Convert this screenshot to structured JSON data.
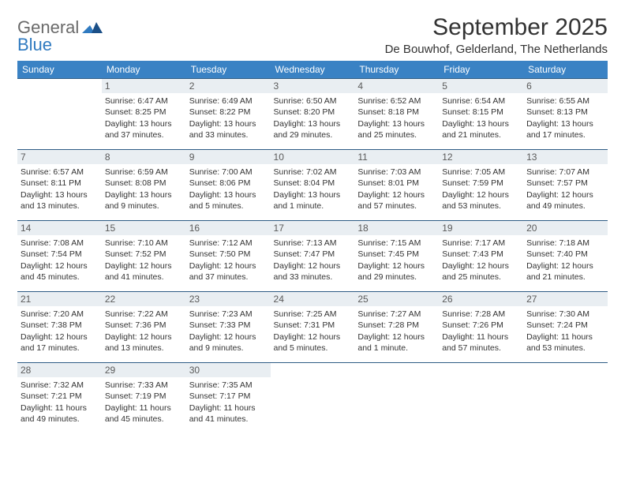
{
  "logo": {
    "word1": "General",
    "word2": "Blue"
  },
  "title": "September 2025",
  "location": "De Bouwhof, Gelderland, The Netherlands",
  "colors": {
    "header_bg": "#3a82c4",
    "header_text": "#ffffff",
    "row_border": "#2e5c85",
    "daynum_bg": "#e9eef2",
    "text": "#333333",
    "logo_gray": "#6a6a6a",
    "logo_blue": "#2f7ac0"
  },
  "dow": [
    "Sunday",
    "Monday",
    "Tuesday",
    "Wednesday",
    "Thursday",
    "Friday",
    "Saturday"
  ],
  "weeks": [
    [
      null,
      {
        "n": "1",
        "sr": "Sunrise: 6:47 AM",
        "ss": "Sunset: 8:25 PM",
        "d1": "Daylight: 13 hours",
        "d2": "and 37 minutes."
      },
      {
        "n": "2",
        "sr": "Sunrise: 6:49 AM",
        "ss": "Sunset: 8:22 PM",
        "d1": "Daylight: 13 hours",
        "d2": "and 33 minutes."
      },
      {
        "n": "3",
        "sr": "Sunrise: 6:50 AM",
        "ss": "Sunset: 8:20 PM",
        "d1": "Daylight: 13 hours",
        "d2": "and 29 minutes."
      },
      {
        "n": "4",
        "sr": "Sunrise: 6:52 AM",
        "ss": "Sunset: 8:18 PM",
        "d1": "Daylight: 13 hours",
        "d2": "and 25 minutes."
      },
      {
        "n": "5",
        "sr": "Sunrise: 6:54 AM",
        "ss": "Sunset: 8:15 PM",
        "d1": "Daylight: 13 hours",
        "d2": "and 21 minutes."
      },
      {
        "n": "6",
        "sr": "Sunrise: 6:55 AM",
        "ss": "Sunset: 8:13 PM",
        "d1": "Daylight: 13 hours",
        "d2": "and 17 minutes."
      }
    ],
    [
      {
        "n": "7",
        "sr": "Sunrise: 6:57 AM",
        "ss": "Sunset: 8:11 PM",
        "d1": "Daylight: 13 hours",
        "d2": "and 13 minutes."
      },
      {
        "n": "8",
        "sr": "Sunrise: 6:59 AM",
        "ss": "Sunset: 8:08 PM",
        "d1": "Daylight: 13 hours",
        "d2": "and 9 minutes."
      },
      {
        "n": "9",
        "sr": "Sunrise: 7:00 AM",
        "ss": "Sunset: 8:06 PM",
        "d1": "Daylight: 13 hours",
        "d2": "and 5 minutes."
      },
      {
        "n": "10",
        "sr": "Sunrise: 7:02 AM",
        "ss": "Sunset: 8:04 PM",
        "d1": "Daylight: 13 hours",
        "d2": "and 1 minute."
      },
      {
        "n": "11",
        "sr": "Sunrise: 7:03 AM",
        "ss": "Sunset: 8:01 PM",
        "d1": "Daylight: 12 hours",
        "d2": "and 57 minutes."
      },
      {
        "n": "12",
        "sr": "Sunrise: 7:05 AM",
        "ss": "Sunset: 7:59 PM",
        "d1": "Daylight: 12 hours",
        "d2": "and 53 minutes."
      },
      {
        "n": "13",
        "sr": "Sunrise: 7:07 AM",
        "ss": "Sunset: 7:57 PM",
        "d1": "Daylight: 12 hours",
        "d2": "and 49 minutes."
      }
    ],
    [
      {
        "n": "14",
        "sr": "Sunrise: 7:08 AM",
        "ss": "Sunset: 7:54 PM",
        "d1": "Daylight: 12 hours",
        "d2": "and 45 minutes."
      },
      {
        "n": "15",
        "sr": "Sunrise: 7:10 AM",
        "ss": "Sunset: 7:52 PM",
        "d1": "Daylight: 12 hours",
        "d2": "and 41 minutes."
      },
      {
        "n": "16",
        "sr": "Sunrise: 7:12 AM",
        "ss": "Sunset: 7:50 PM",
        "d1": "Daylight: 12 hours",
        "d2": "and 37 minutes."
      },
      {
        "n": "17",
        "sr": "Sunrise: 7:13 AM",
        "ss": "Sunset: 7:47 PM",
        "d1": "Daylight: 12 hours",
        "d2": "and 33 minutes."
      },
      {
        "n": "18",
        "sr": "Sunrise: 7:15 AM",
        "ss": "Sunset: 7:45 PM",
        "d1": "Daylight: 12 hours",
        "d2": "and 29 minutes."
      },
      {
        "n": "19",
        "sr": "Sunrise: 7:17 AM",
        "ss": "Sunset: 7:43 PM",
        "d1": "Daylight: 12 hours",
        "d2": "and 25 minutes."
      },
      {
        "n": "20",
        "sr": "Sunrise: 7:18 AM",
        "ss": "Sunset: 7:40 PM",
        "d1": "Daylight: 12 hours",
        "d2": "and 21 minutes."
      }
    ],
    [
      {
        "n": "21",
        "sr": "Sunrise: 7:20 AM",
        "ss": "Sunset: 7:38 PM",
        "d1": "Daylight: 12 hours",
        "d2": "and 17 minutes."
      },
      {
        "n": "22",
        "sr": "Sunrise: 7:22 AM",
        "ss": "Sunset: 7:36 PM",
        "d1": "Daylight: 12 hours",
        "d2": "and 13 minutes."
      },
      {
        "n": "23",
        "sr": "Sunrise: 7:23 AM",
        "ss": "Sunset: 7:33 PM",
        "d1": "Daylight: 12 hours",
        "d2": "and 9 minutes."
      },
      {
        "n": "24",
        "sr": "Sunrise: 7:25 AM",
        "ss": "Sunset: 7:31 PM",
        "d1": "Daylight: 12 hours",
        "d2": "and 5 minutes."
      },
      {
        "n": "25",
        "sr": "Sunrise: 7:27 AM",
        "ss": "Sunset: 7:28 PM",
        "d1": "Daylight: 12 hours",
        "d2": "and 1 minute."
      },
      {
        "n": "26",
        "sr": "Sunrise: 7:28 AM",
        "ss": "Sunset: 7:26 PM",
        "d1": "Daylight: 11 hours",
        "d2": "and 57 minutes."
      },
      {
        "n": "27",
        "sr": "Sunrise: 7:30 AM",
        "ss": "Sunset: 7:24 PM",
        "d1": "Daylight: 11 hours",
        "d2": "and 53 minutes."
      }
    ],
    [
      {
        "n": "28",
        "sr": "Sunrise: 7:32 AM",
        "ss": "Sunset: 7:21 PM",
        "d1": "Daylight: 11 hours",
        "d2": "and 49 minutes."
      },
      {
        "n": "29",
        "sr": "Sunrise: 7:33 AM",
        "ss": "Sunset: 7:19 PM",
        "d1": "Daylight: 11 hours",
        "d2": "and 45 minutes."
      },
      {
        "n": "30",
        "sr": "Sunrise: 7:35 AM",
        "ss": "Sunset: 7:17 PM",
        "d1": "Daylight: 11 hours",
        "d2": "and 41 minutes."
      },
      null,
      null,
      null,
      null
    ]
  ]
}
